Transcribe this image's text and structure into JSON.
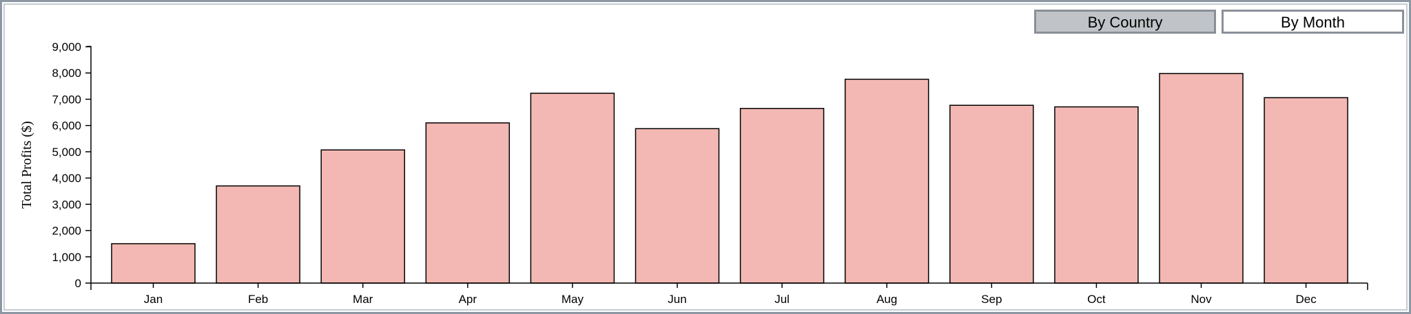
{
  "controls": {
    "by_country_label": "By Country",
    "by_month_label": "By Month",
    "active": "By Country"
  },
  "chart_data": {
    "type": "bar",
    "title": "",
    "xlabel": "",
    "ylabel": "Total Profits ($)",
    "categories": [
      "Jan",
      "Feb",
      "Mar",
      "Apr",
      "May",
      "Jun",
      "Jul",
      "Aug",
      "Sep",
      "Oct",
      "Nov",
      "Dec"
    ],
    "values": [
      1500,
      3700,
      5070,
      6100,
      7230,
      5880,
      6650,
      7760,
      6770,
      6710,
      7980,
      7060
    ],
    "ylim": [
      0,
      9000
    ],
    "yticks": [
      0,
      1000,
      2000,
      3000,
      4000,
      5000,
      6000,
      7000,
      8000,
      9000
    ],
    "ytick_labels": [
      "0",
      "1,000",
      "2,000",
      "3,000",
      "4,000",
      "5,000",
      "6,000",
      "7,000",
      "8,000",
      "9,000"
    ],
    "grid": false,
    "legend": "none",
    "bar_color": "#f3b8b3",
    "bar_edge_color": "#000000"
  }
}
